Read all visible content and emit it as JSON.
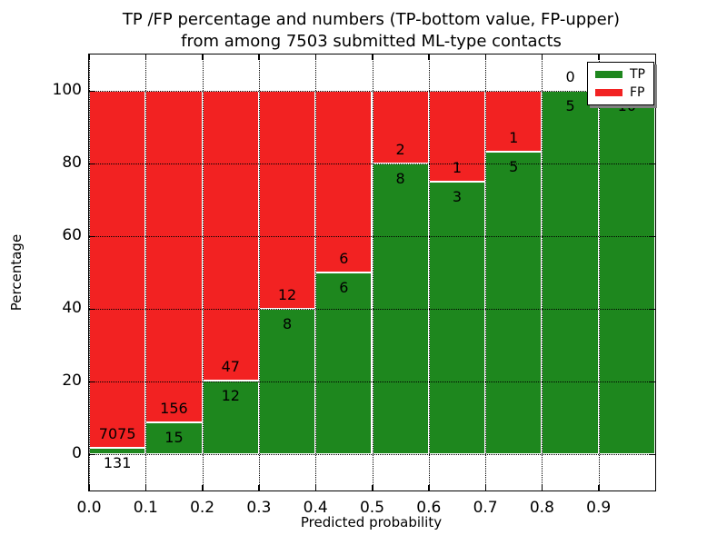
{
  "title": {
    "line1": "TP /FP percentage and numbers (TP-bottom value, FP-upper)",
    "line2": "from among 7503 submitted ML-type contacts"
  },
  "axes": {
    "xlabel": "Predicted probability",
    "ylabel": "Percentage",
    "xtick_labels": [
      "0.0",
      "0.1",
      "0.2",
      "0.3",
      "0.4",
      "0.5",
      "0.6",
      "0.7",
      "0.8",
      "0.9"
    ],
    "ytick_labels": [
      "0",
      "20",
      "40",
      "60",
      "80",
      "100"
    ]
  },
  "legend": {
    "items": [
      {
        "label": "TP",
        "color": "#1e871e"
      },
      {
        "label": "FP",
        "color": "#f22222"
      }
    ]
  },
  "colors": {
    "tp_green": "#1e871e",
    "fp_red": "#f22222",
    "grid": "#000000",
    "legend_shadow": "#808080"
  },
  "chart_data": {
    "type": "bar",
    "stacked": true,
    "title": "TP /FP percentage and numbers (TP-bottom value, FP-upper) from among 7503 submitted ML-type contacts",
    "total_contacts": 7503,
    "xlabel": "Predicted probability",
    "ylabel": "Percentage",
    "xlim": [
      0.0,
      1.0
    ],
    "ylim": [
      -10,
      110
    ],
    "xticks": [
      0.0,
      0.1,
      0.2,
      0.3,
      0.4,
      0.5,
      0.6,
      0.7,
      0.8,
      0.9
    ],
    "yticks": [
      0,
      20,
      40,
      60,
      80,
      100
    ],
    "grid": true,
    "legend_position": "upper right",
    "bin_edges": [
      0.0,
      0.1,
      0.2,
      0.3,
      0.4,
      0.5,
      0.6,
      0.7,
      0.8,
      0.9,
      1.0
    ],
    "tp_counts_labels": [
      "131",
      "15",
      "12",
      "8",
      "6",
      "8",
      "3",
      "5",
      "5",
      "10"
    ],
    "fp_counts_labels": [
      "7075",
      "156",
      "47",
      "12",
      "6",
      "2",
      "1",
      "1",
      "0",
      ""
    ],
    "series": [
      {
        "name": "TP",
        "values_pct": [
          1.8,
          8.8,
          20.3,
          40.0,
          50.0,
          80.0,
          75.0,
          83.3,
          100.0,
          100.0
        ]
      },
      {
        "name": "FP",
        "values_pct": [
          98.2,
          91.2,
          79.7,
          60.0,
          50.0,
          20.0,
          25.0,
          16.7,
          0.0,
          0.0
        ]
      }
    ]
  },
  "layout_note": ""
}
